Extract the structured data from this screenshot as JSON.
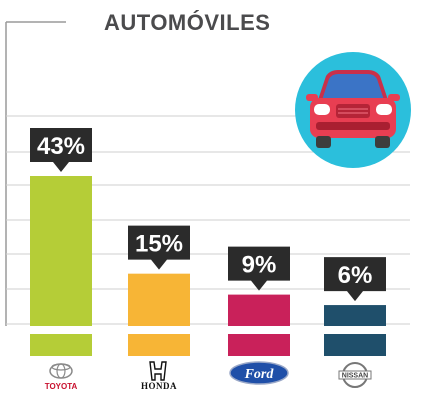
{
  "chart_data": {
    "type": "bar",
    "title": "AUTOMÓVILES",
    "categories": [
      "TOYOTA",
      "HONDA",
      "Ford",
      "NISSAN"
    ],
    "values": [
      43,
      15,
      9,
      6
    ],
    "labels": [
      "43%",
      "15%",
      "9%",
      "6%"
    ],
    "ylim": [
      0,
      43
    ],
    "grid": true,
    "colors": [
      "#b5cd37",
      "#f7b536",
      "#c9215a",
      "#1f4f6b"
    ]
  },
  "icon": "car-icon",
  "icon_background": "#2bbfdc"
}
